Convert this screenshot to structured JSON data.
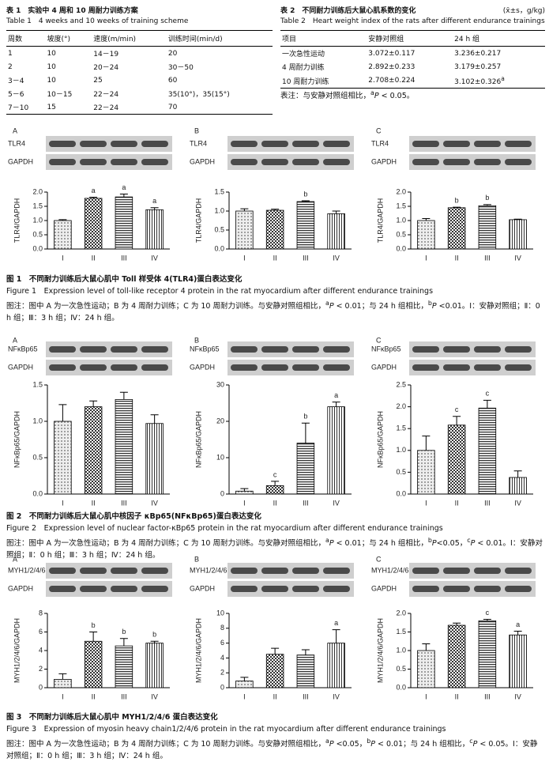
{
  "table1": {
    "title_cn": "表 1　实验中 4 周和 10 周耐力训练方案",
    "title_en": "Table 1　4 weeks and 10 weeks of training scheme",
    "header": [
      "周数",
      "坡度(°)",
      "速度(m/min)",
      "训练时间(min/d)"
    ],
    "rows": [
      [
        "1",
        "10",
        "14－19",
        "20"
      ],
      [
        "2",
        "10",
        "20－24",
        "30－50"
      ],
      [
        "3－4",
        "10",
        "25",
        "60"
      ],
      [
        "5－6",
        "10－15",
        "22－24",
        "35(10°)，35(15°)"
      ],
      [
        "7－10",
        "15",
        "22－24",
        "70"
      ]
    ]
  },
  "table2": {
    "title_cn": "表 2　不同耐力训练后大鼠心肌系数的变化",
    "unit": "(x̄±s，g/kg)",
    "title_en": "Table 2　Heart weight index of the rats after different endurance trainings",
    "header": [
      "项目",
      "安静对照组",
      "24 h 组"
    ],
    "rows": [
      [
        "一次急性运动",
        "3.072±0.117",
        "3.236±0.217"
      ],
      [
        "4 周耐力训练",
        "2.892±0.233",
        "3.179±0.257"
      ],
      [
        "10 周耐力训练",
        "2.708±0.224",
        [
          {
            "t": "3.102±0.326"
          },
          {
            "t": "a",
            "s": "sup"
          }
        ]
      ]
    ],
    "note": [
      {
        "t": "表注：与安静对照组相比，"
      },
      {
        "t": "a",
        "s": "sup"
      },
      {
        "t": "P",
        "s": "i"
      },
      {
        "t": " < 0.05。"
      }
    ]
  },
  "figures": [
    {
      "caption_cn": "图 1　不同耐力训练后大鼠心肌中 Toll 样受体 4(TLR4)蛋白表达变化",
      "caption_en": "Figure 1　Expression level of toll-like receptor 4 protein in the rat myocardium after different endurance trainings",
      "note": [
        {
          "t": "图注：图中 A 为一次急性运动；B 为 4 周耐力训练；C 为 10 周耐力训练。与安静对照组相比，"
        },
        {
          "t": "a",
          "s": "sup"
        },
        {
          "t": "P",
          "s": "i"
        },
        {
          "t": " < 0.01；与 24 h 组相比，"
        },
        {
          "t": "b",
          "s": "sup"
        },
        {
          "t": "P",
          "s": "i"
        },
        {
          "t": " <0.01。Ⅰ：安静对照组；Ⅱ：0 h 组；Ⅲ：3 h 组；Ⅳ：24 h 组。"
        }
      ]
    },
    {
      "caption_cn": "图 2　不同耐力训练后大鼠心肌中核因子 κBp65(NFκBp65)蛋白表达变化",
      "caption_en": "Figure 2　Expression level of nuclear factor-κBp65 protein in the rat myocardium after different endurance trainings",
      "note": [
        {
          "t": "图注：图中 A 为一次急性运动；B 为 4 周耐力训练；C 为 10 周耐力训练。与安静对照组相比，"
        },
        {
          "t": "a",
          "s": "sup"
        },
        {
          "t": "P",
          "s": "i"
        },
        {
          "t": " < 0.01；与 24 h 组相比，"
        },
        {
          "t": "b",
          "s": "sup"
        },
        {
          "t": "P",
          "s": "i"
        },
        {
          "t": "<0.05，"
        },
        {
          "t": "c",
          "s": "sup"
        },
        {
          "t": "P",
          "s": "i"
        },
        {
          "t": " < 0.01。Ⅰ：安静对照组；Ⅱ：0 h 组；Ⅲ：3 h 组；Ⅳ：24 h 组。"
        }
      ]
    },
    {
      "caption_cn": "图 3　不同耐力训练后大鼠心肌中 MYH1/2/4/6 蛋白表达变化",
      "caption_en": "Figure 3　Expression of myosin heavy chain1/2/4/6 protein in the rat myocardium after different endurance trainings",
      "note": [
        {
          "t": "图注：图中 A 为一次急性运动；B 为 4 周耐力训练；C 为 10 周耐力训练。与安静对照组相比，"
        },
        {
          "t": "a",
          "s": "sup"
        },
        {
          "t": "P",
          "s": "i"
        },
        {
          "t": " <0.05，"
        },
        {
          "t": "b",
          "s": "sup"
        },
        {
          "t": "P",
          "s": "i"
        },
        {
          "t": " < 0.01；与 24 h 组相比，"
        },
        {
          "t": "c",
          "s": "sup"
        },
        {
          "t": "P",
          "s": "i"
        },
        {
          "t": " < 0.05。Ⅰ：安静对照组；Ⅱ：0 h 组；Ⅲ：3 h 组；Ⅳ：24 h 组。"
        }
      ]
    }
  ],
  "chart_data": [
    {
      "type": "bar",
      "title": "A",
      "blot_labels": [
        "TLR4",
        "GAPDH"
      ],
      "ylabel": "TLR4/GAPDH",
      "categories": [
        "I",
        "II",
        "III",
        "IV"
      ],
      "values": [
        1.0,
        1.78,
        1.83,
        1.38
      ],
      "errors": [
        0.03,
        0.04,
        0.1,
        0.07
      ],
      "annotations": [
        null,
        "a",
        "a",
        "a"
      ],
      "ylim": [
        0,
        2
      ],
      "yticks": [
        {
          "value": 0,
          "label": "0.0"
        },
        0.5,
        {
          "value": 1,
          "label": "1.0"
        },
        1.5,
        {
          "value": 2,
          "label": "2.0"
        }
      ]
    },
    {
      "type": "bar",
      "title": "B",
      "blot_labels": [
        "TLR4",
        "GAPDH"
      ],
      "ylabel": "TLR4/GAPDH",
      "categories": [
        "I",
        "II",
        "III",
        "IV"
      ],
      "values": [
        1.0,
        1.02,
        1.25,
        0.93
      ],
      "errors": [
        0.06,
        0.03,
        0.02,
        0.07
      ],
      "annotations": [
        null,
        null,
        "b",
        null
      ],
      "ylim": [
        0,
        1.5
      ],
      "yticks": [
        {
          "value": 0,
          "label": "0.0"
        },
        0.5,
        {
          "value": 1,
          "label": "1.0"
        },
        1.5
      ]
    },
    {
      "type": "bar",
      "title": "C",
      "blot_labels": [
        "TLR4",
        "GAPDH"
      ],
      "ylabel": "TLR4/GAPDH",
      "categories": [
        "I",
        "II",
        "III",
        "IV"
      ],
      "values": [
        1.0,
        1.45,
        1.52,
        1.03
      ],
      "errors": [
        0.07,
        0.02,
        0.04,
        0.02
      ],
      "annotations": [
        null,
        "b",
        "b",
        null
      ],
      "ylim": [
        0,
        2
      ],
      "yticks": [
        {
          "value": 0,
          "label": "0.0"
        },
        0.5,
        {
          "value": 1,
          "label": "1.0"
        },
        1.5,
        {
          "value": 2,
          "label": "2.0"
        }
      ]
    },
    {
      "type": "bar",
      "title": "A",
      "blot_labels": [
        "NFκBp65",
        "GAPDH"
      ],
      "ylabel": "NFκBp65/GAPDH",
      "categories": [
        "I",
        "II",
        "III",
        "IV"
      ],
      "values": [
        1.0,
        1.2,
        1.3,
        0.97
      ],
      "errors": [
        0.23,
        0.08,
        0.1,
        0.12
      ],
      "annotations": [
        null,
        null,
        null,
        null
      ],
      "ylim": [
        0,
        1.5
      ],
      "yticks": [
        {
          "value": 0,
          "label": "0.0"
        },
        0.5,
        {
          "value": 1,
          "label": "1.0"
        },
        1.5
      ]
    },
    {
      "type": "bar",
      "title": "B",
      "blot_labels": [
        "NFκBp65",
        "GAPDH"
      ],
      "ylabel": "NFκBp65/GAPDH",
      "categories": [
        "I",
        "II",
        "III",
        "IV"
      ],
      "values": [
        0.8,
        2.3,
        14,
        24
      ],
      "errors": [
        0.7,
        1.2,
        5.5,
        1.3
      ],
      "annotations": [
        null,
        "c",
        "b",
        "a"
      ],
      "ylim": [
        0,
        30
      ],
      "yticks": [
        0,
        10,
        20,
        30
      ]
    },
    {
      "type": "bar",
      "title": "C",
      "blot_labels": [
        "NFκBp65",
        "GAPDH"
      ],
      "ylabel": "NFκBp65/GAPDH",
      "categories": [
        "I",
        "II",
        "III",
        "IV"
      ],
      "values": [
        1.0,
        1.58,
        1.97,
        0.38
      ],
      "errors": [
        0.33,
        0.2,
        0.18,
        0.15
      ],
      "annotations": [
        null,
        "c",
        "c",
        null
      ],
      "ylim": [
        0,
        2.5
      ],
      "yticks": [
        {
          "value": 0,
          "label": "0.0"
        },
        0.5,
        {
          "value": 1,
          "label": "1.0"
        },
        1.5,
        {
          "value": 2,
          "label": "2.0"
        },
        2.5
      ]
    },
    {
      "type": "bar",
      "title": "A",
      "blot_labels": [
        "MYH1/2/4/6",
        "GAPDH"
      ],
      "ylabel": "MYH1/2/4/6/GAPDH",
      "categories": [
        "I",
        "II",
        "III",
        "IV"
      ],
      "values": [
        0.9,
        5.0,
        4.5,
        4.8
      ],
      "errors": [
        0.6,
        1.0,
        0.8,
        0.2
      ],
      "annotations": [
        null,
        "b",
        "b",
        "b"
      ],
      "ylim": [
        0,
        8
      ],
      "yticks": [
        0,
        2,
        4,
        6,
        8
      ]
    },
    {
      "type": "bar",
      "title": "B",
      "blot_labels": [
        "MYH1/2/4/6",
        "GAPDH"
      ],
      "ylabel": "MYH1/2/4/6/GAPDH",
      "categories": [
        "I",
        "II",
        "III",
        "IV"
      ],
      "values": [
        0.9,
        4.5,
        4.4,
        6.0
      ],
      "errors": [
        0.5,
        0.8,
        0.7,
        1.8
      ],
      "annotations": [
        null,
        null,
        null,
        "a"
      ],
      "ylim": [
        0,
        10
      ],
      "yticks": [
        0,
        2,
        4,
        6,
        8,
        10
      ]
    },
    {
      "type": "bar",
      "title": "C",
      "blot_labels": [
        "MYH1/2/4/6",
        "GAPDH"
      ],
      "ylabel": "MYH1/2/4/6/GAPDH",
      "categories": [
        "I",
        "II",
        "III",
        "IV"
      ],
      "values": [
        1.0,
        1.68,
        1.8,
        1.42
      ],
      "errors": [
        0.18,
        0.06,
        0.04,
        0.1
      ],
      "annotations": [
        null,
        null,
        "c",
        "a"
      ],
      "ylim": [
        0,
        2
      ],
      "yticks": [
        {
          "value": 0,
          "label": "0.0"
        },
        0.5,
        {
          "value": 1,
          "label": "1.0"
        },
        1.5,
        {
          "value": 2,
          "label": "2.0"
        }
      ]
    }
  ]
}
